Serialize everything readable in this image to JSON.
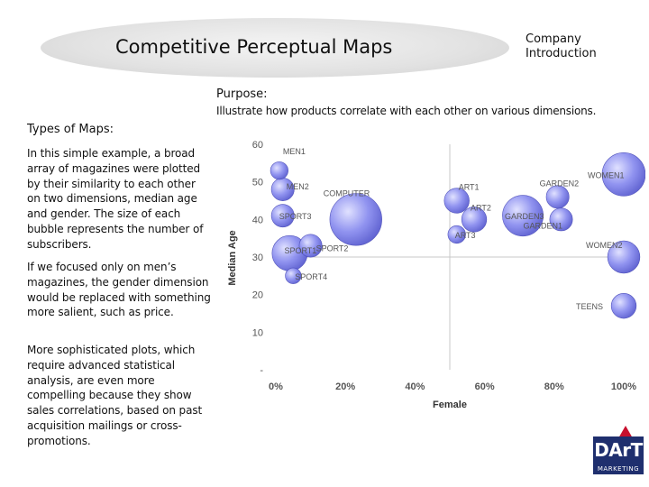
{
  "header": {
    "title": "Competitive Perceptual Maps",
    "company_line1": "Company",
    "company_line2": "Introduction"
  },
  "purpose": {
    "heading": "Purpose:",
    "text": "Illustrate how products correlate with each other on various dimensions."
  },
  "types": {
    "heading": "Types of Maps:",
    "paragraphs": [
      "In this simple example, a broad array of magazines were plotted by their similarity to each other on two dimensions, median age and gender. The size of each bubble represents the number of subscribers.",
      "If we focused only on men’s magazines, the gender dimension would be replaced with something more salient, such as price.",
      "More sophisticated plots, which require advanced statistical analysis, are even more compelling because they show sales correlations, based on past acquisition mailings or cross-promotions."
    ]
  },
  "logo": {
    "text": "DArT",
    "sub": "MARKETING"
  },
  "chart_data": {
    "type": "scatter",
    "subtype": "bubble",
    "title": "",
    "xlabel": "Female",
    "ylabel": "Median Age",
    "xlim": [
      0,
      100
    ],
    "ylim": [
      0,
      60
    ],
    "x_ticks": [
      0,
      20,
      40,
      60,
      80,
      100
    ],
    "x_tick_labels": [
      "0%",
      "20%",
      "40%",
      "60%",
      "80%",
      "100%"
    ],
    "y_ticks": [
      0,
      10,
      20,
      30,
      40,
      50,
      60
    ],
    "y_tick_labels": [
      "-",
      "10",
      "20",
      "30",
      "40",
      "50",
      "60"
    ],
    "grid": "center lines at x=50% and y=30",
    "bubble_color": "#8c8ff0",
    "points": [
      {
        "label": "MEN1",
        "x": 1,
        "y": 53,
        "size": 1.5
      },
      {
        "label": "MEN2",
        "x": 2,
        "y": 48,
        "size": 2.5
      },
      {
        "label": "COMPUTER",
        "x": 23,
        "y": 40,
        "size": 13
      },
      {
        "label": "SPORT3",
        "x": 2,
        "y": 41,
        "size": 2.5
      },
      {
        "label": "SPORT1",
        "x": 4,
        "y": 31,
        "size": 6
      },
      {
        "label": "SPORT2",
        "x": 10,
        "y": 33,
        "size": 2.5
      },
      {
        "label": "SPORT4",
        "x": 5,
        "y": 25,
        "size": 1.2
      },
      {
        "label": "ART1",
        "x": 52,
        "y": 45,
        "size": 3
      },
      {
        "label": "ART2",
        "x": 57,
        "y": 40,
        "size": 3
      },
      {
        "label": "ART3",
        "x": 52,
        "y": 36,
        "size": 1.5
      },
      {
        "label": "GARDEN3",
        "x": 71,
        "y": 41,
        "size": 8
      },
      {
        "label": "GARDEN2",
        "x": 81,
        "y": 46,
        "size": 2.5
      },
      {
        "label": "GARDEN1",
        "x": 82,
        "y": 40,
        "size": 2.5
      },
      {
        "label": "WOMEN1",
        "x": 100,
        "y": 52,
        "size": 9
      },
      {
        "label": "WOMEN2",
        "x": 100,
        "y": 30,
        "size": 5
      },
      {
        "label": "TEENS",
        "x": 100,
        "y": 17,
        "size": 3
      }
    ]
  }
}
